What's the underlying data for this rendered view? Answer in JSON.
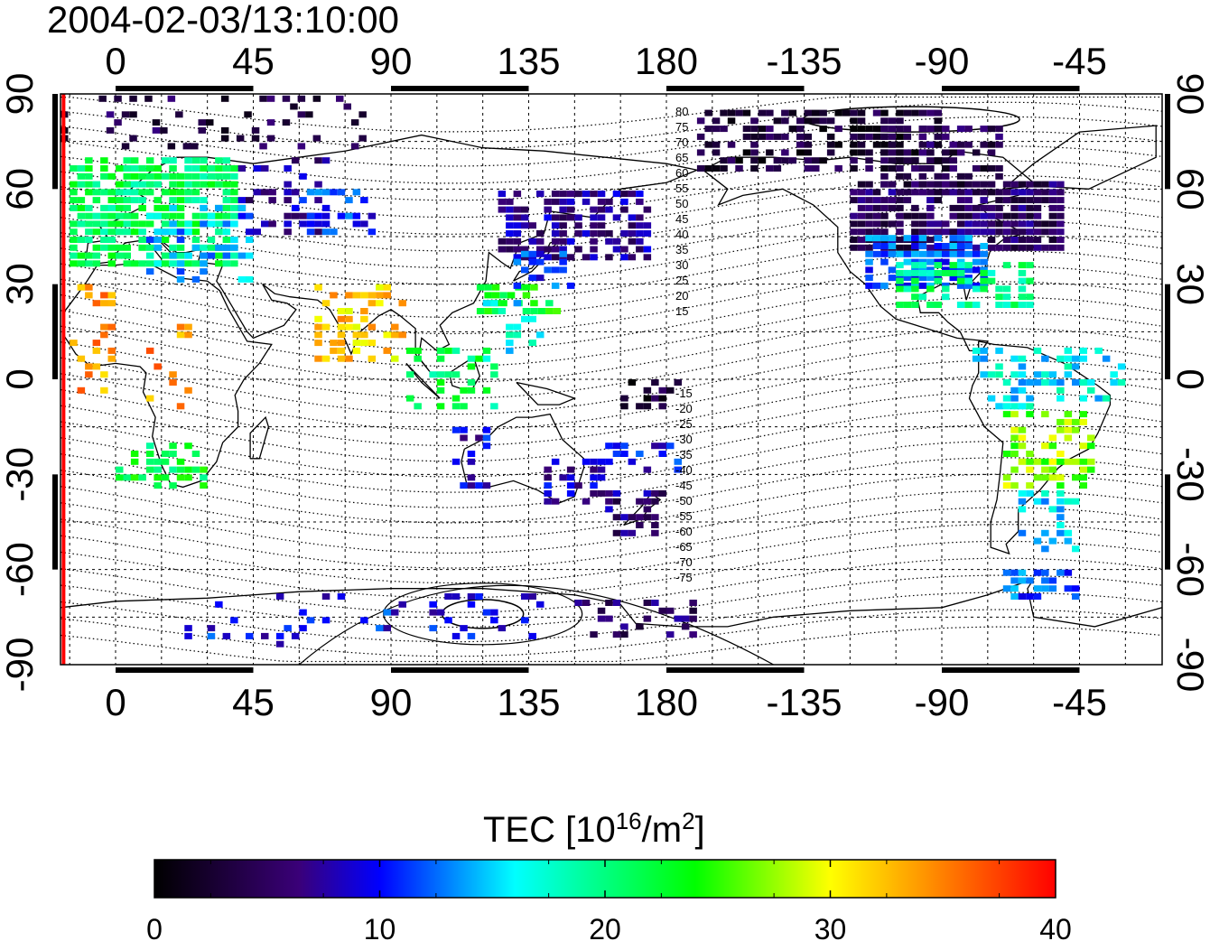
{
  "timestamp": "2004-02-03/13:10:00",
  "map": {
    "lon_ticks": [
      {
        "lon": 0,
        "label": "0"
      },
      {
        "lon": 45,
        "label": "45"
      },
      {
        "lon": 90,
        "label": "90"
      },
      {
        "lon": 135,
        "label": "135"
      },
      {
        "lon": 180,
        "label": "180"
      },
      {
        "lon": 225,
        "label": "-135"
      },
      {
        "lon": 270,
        "label": "-90"
      },
      {
        "lon": 315,
        "label": "-45"
      }
    ],
    "lat_ticks": [
      {
        "lat": 90,
        "label": "90"
      },
      {
        "lat": 60,
        "label": "60"
      },
      {
        "lat": 30,
        "label": "30"
      },
      {
        "lat": 0,
        "label": "0"
      },
      {
        "lat": -30,
        "label": "-30"
      },
      {
        "lat": -60,
        "label": "-60"
      },
      {
        "lat": -90,
        "label": "-90"
      }
    ],
    "lon_range": [
      -18,
      342
    ],
    "lat_range": [
      -90,
      90
    ],
    "terminator_lon": -17,
    "contour_labels_north": [
      "80",
      "75",
      "70",
      "65",
      "60",
      "55",
      "50",
      "45",
      "40",
      "35",
      "30",
      "25",
      "20",
      "15"
    ],
    "contour_labels_south": [
      "-15",
      "-20",
      "-25",
      "-30",
      "-35",
      "-40",
      "-45",
      "-50",
      "-55",
      "-60",
      "-65",
      "-70",
      "-75"
    ]
  },
  "colorbar": {
    "title_prefix": "TEC  [10",
    "title_exp": "16",
    "title_unit": "/m",
    "title_exp2": "2",
    "title_suffix": "]",
    "min": 0,
    "max": 40,
    "ticks": [
      "0",
      "10",
      "20",
      "30",
      "40"
    ],
    "stops": [
      "#000000",
      "#3a0078",
      "#0000ff",
      "#00ffff",
      "#00ff00",
      "#ffff00",
      "#ff0000"
    ]
  }
}
